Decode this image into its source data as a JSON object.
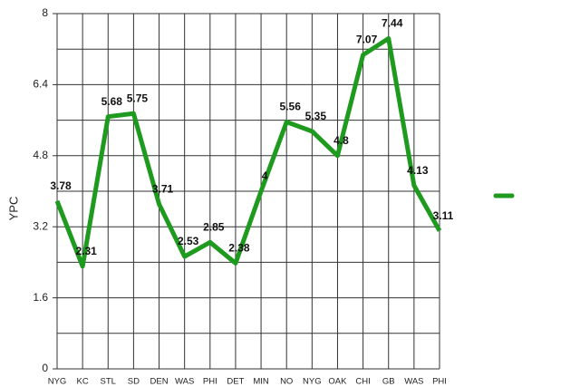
{
  "chart_data": {
    "type": "line",
    "y_label": "YPC",
    "categories": [
      "NYG",
      "KC",
      "STL",
      "SD",
      "DEN",
      "WAS",
      "PHI",
      "DET",
      "MIN",
      "NO",
      "NYG",
      "OAK",
      "CHI",
      "GB",
      "WAS",
      "PHI"
    ],
    "series": [
      {
        "color": "#1e9a1e",
        "values": [
          3.78,
          2.31,
          5.68,
          5.75,
          3.71,
          2.53,
          2.85,
          2.38,
          4,
          5.56,
          5.35,
          4.8,
          7.07,
          7.44,
          4.13,
          3.11
        ]
      }
    ],
    "ylim": [
      0,
      8
    ],
    "yticks": [
      0,
      1.6,
      3.2,
      4.8,
      6.4,
      8
    ],
    "y_minor_ticks": [
      0.8,
      2.4,
      4,
      5.6,
      7.2
    ],
    "grid": true,
    "legend": "right"
  }
}
